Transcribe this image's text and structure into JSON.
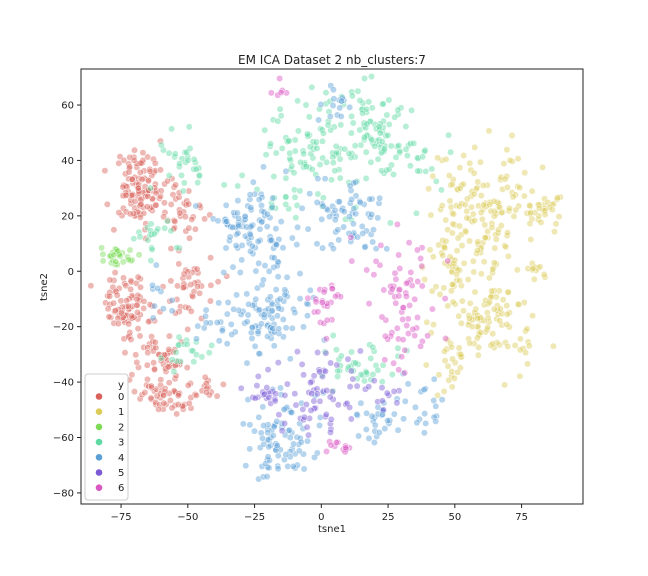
{
  "chart_data": {
    "type": "scatter",
    "title": "EM ICA Dataset 2 nb_clusters:7",
    "xlabel": "tsne1",
    "ylabel": "tsne2",
    "xlim": [
      -90,
      98
    ],
    "ylim": [
      -84,
      73
    ],
    "xticks": [
      -75,
      -50,
      -25,
      0,
      25,
      50,
      75
    ],
    "yticks": [
      -80,
      -60,
      -40,
      -20,
      0,
      20,
      40,
      60
    ],
    "xtick_labels": [
      "−75",
      "−50",
      "−25",
      "0",
      "25",
      "50",
      "75"
    ],
    "ytick_labels": [
      "−80",
      "−60",
      "−40",
      "−20",
      "0",
      "20",
      "40",
      "60"
    ],
    "grid": false,
    "legend": {
      "title": "y",
      "placement": "lower-left"
    },
    "series": [
      {
        "name": "0",
        "color": "#d9625b",
        "clusters": [
          {
            "cx": -68,
            "cy": 30,
            "sx": 5,
            "sy": 7,
            "n": 120
          },
          {
            "cx": -74,
            "cy": -12,
            "sx": 5,
            "sy": 5,
            "n": 80
          },
          {
            "cx": -61,
            "cy": -33,
            "sx": 5,
            "sy": 8,
            "n": 70
          },
          {
            "cx": -58,
            "cy": -45,
            "sx": 6,
            "sy": 4,
            "n": 40
          },
          {
            "cx": -52,
            "cy": 20,
            "sx": 4,
            "sy": 6,
            "n": 35
          },
          {
            "cx": -50,
            "cy": -5,
            "sx": 5,
            "sy": 6,
            "n": 40
          },
          {
            "cx": -43,
            "cy": -43,
            "sx": 4,
            "sy": 3,
            "n": 15
          }
        ]
      },
      {
        "name": "1",
        "color": "#dccb59",
        "clusters": [
          {
            "cx": 60,
            "cy": 22,
            "sx": 10,
            "sy": 12,
            "n": 150
          },
          {
            "cx": 82,
            "cy": 22,
            "sx": 4,
            "sy": 4,
            "n": 30
          },
          {
            "cx": 62,
            "cy": -18,
            "sx": 10,
            "sy": 8,
            "n": 110
          },
          {
            "cx": 50,
            "cy": -33,
            "sx": 3,
            "sy": 5,
            "n": 20
          },
          {
            "cx": 80,
            "cy": 0,
            "sx": 2,
            "sy": 2,
            "n": 10
          },
          {
            "cx": 50,
            "cy": 5,
            "sx": 4,
            "sy": 8,
            "n": 30
          }
        ]
      },
      {
        "name": "2",
        "color": "#7ddb58",
        "clusters": [
          {
            "cx": -77,
            "cy": 5,
            "sx": 3,
            "sy": 2,
            "n": 30
          }
        ]
      },
      {
        "name": "3",
        "color": "#5fd9a3",
        "clusters": [
          {
            "cx": -2,
            "cy": 45,
            "sx": 12,
            "sy": 12,
            "n": 110
          },
          {
            "cx": 22,
            "cy": 50,
            "sx": 8,
            "sy": 10,
            "n": 80
          },
          {
            "cx": -52,
            "cy": 38,
            "sx": 5,
            "sy": 5,
            "n": 30
          },
          {
            "cx": -62,
            "cy": 12,
            "sx": 4,
            "sy": 4,
            "n": 20
          },
          {
            "cx": 15,
            "cy": -33,
            "sx": 8,
            "sy": 4,
            "n": 40
          },
          {
            "cx": -48,
            "cy": -30,
            "sx": 6,
            "sy": 3,
            "n": 20
          },
          {
            "cx": 40,
            "cy": 38,
            "sx": 4,
            "sy": 4,
            "n": 12
          },
          {
            "cx": -15,
            "cy": 25,
            "sx": 5,
            "sy": 5,
            "n": 15
          }
        ]
      },
      {
        "name": "4",
        "color": "#5a9fd6",
        "clusters": [
          {
            "cx": -25,
            "cy": 15,
            "sx": 7,
            "sy": 8,
            "n": 100
          },
          {
            "cx": -20,
            "cy": -15,
            "sx": 8,
            "sy": 8,
            "n": 100
          },
          {
            "cx": 10,
            "cy": 20,
            "sx": 7,
            "sy": 8,
            "n": 70
          },
          {
            "cx": -15,
            "cy": -62,
            "sx": 8,
            "sy": 8,
            "n": 90
          },
          {
            "cx": 22,
            "cy": -55,
            "sx": 5,
            "sy": 5,
            "n": 30
          },
          {
            "cx": 5,
            "cy": 60,
            "sx": 3,
            "sy": 4,
            "n": 15
          },
          {
            "cx": -40,
            "cy": -20,
            "sx": 4,
            "sy": 4,
            "n": 12
          },
          {
            "cx": 40,
            "cy": -50,
            "sx": 6,
            "sy": 4,
            "n": 20
          },
          {
            "cx": -60,
            "cy": -8,
            "sx": 3,
            "sy": 4,
            "n": 10
          }
        ]
      },
      {
        "name": "5",
        "color": "#7c5ad6",
        "clusters": [
          {
            "cx": 0,
            "cy": -42,
            "sx": 6,
            "sy": 8,
            "n": 50
          },
          {
            "cx": -18,
            "cy": -47,
            "sx": 6,
            "sy": 6,
            "n": 30
          },
          {
            "cx": 20,
            "cy": -45,
            "sx": 5,
            "sy": 4,
            "n": 15
          }
        ]
      },
      {
        "name": "6",
        "color": "#d957c3",
        "clusters": [
          {
            "cx": 30,
            "cy": -8,
            "sx": 7,
            "sy": 9,
            "n": 60
          },
          {
            "cx": 2,
            "cy": -10,
            "sx": 4,
            "sy": 5,
            "n": 25
          },
          {
            "cx": 6,
            "cy": -63,
            "sx": 3,
            "sy": 2,
            "n": 12
          },
          {
            "cx": 28,
            "cy": -30,
            "sx": 4,
            "sy": 4,
            "n": 12
          },
          {
            "cx": -15,
            "cy": 66,
            "sx": 2,
            "sy": 2,
            "n": 6
          }
        ]
      }
    ]
  }
}
